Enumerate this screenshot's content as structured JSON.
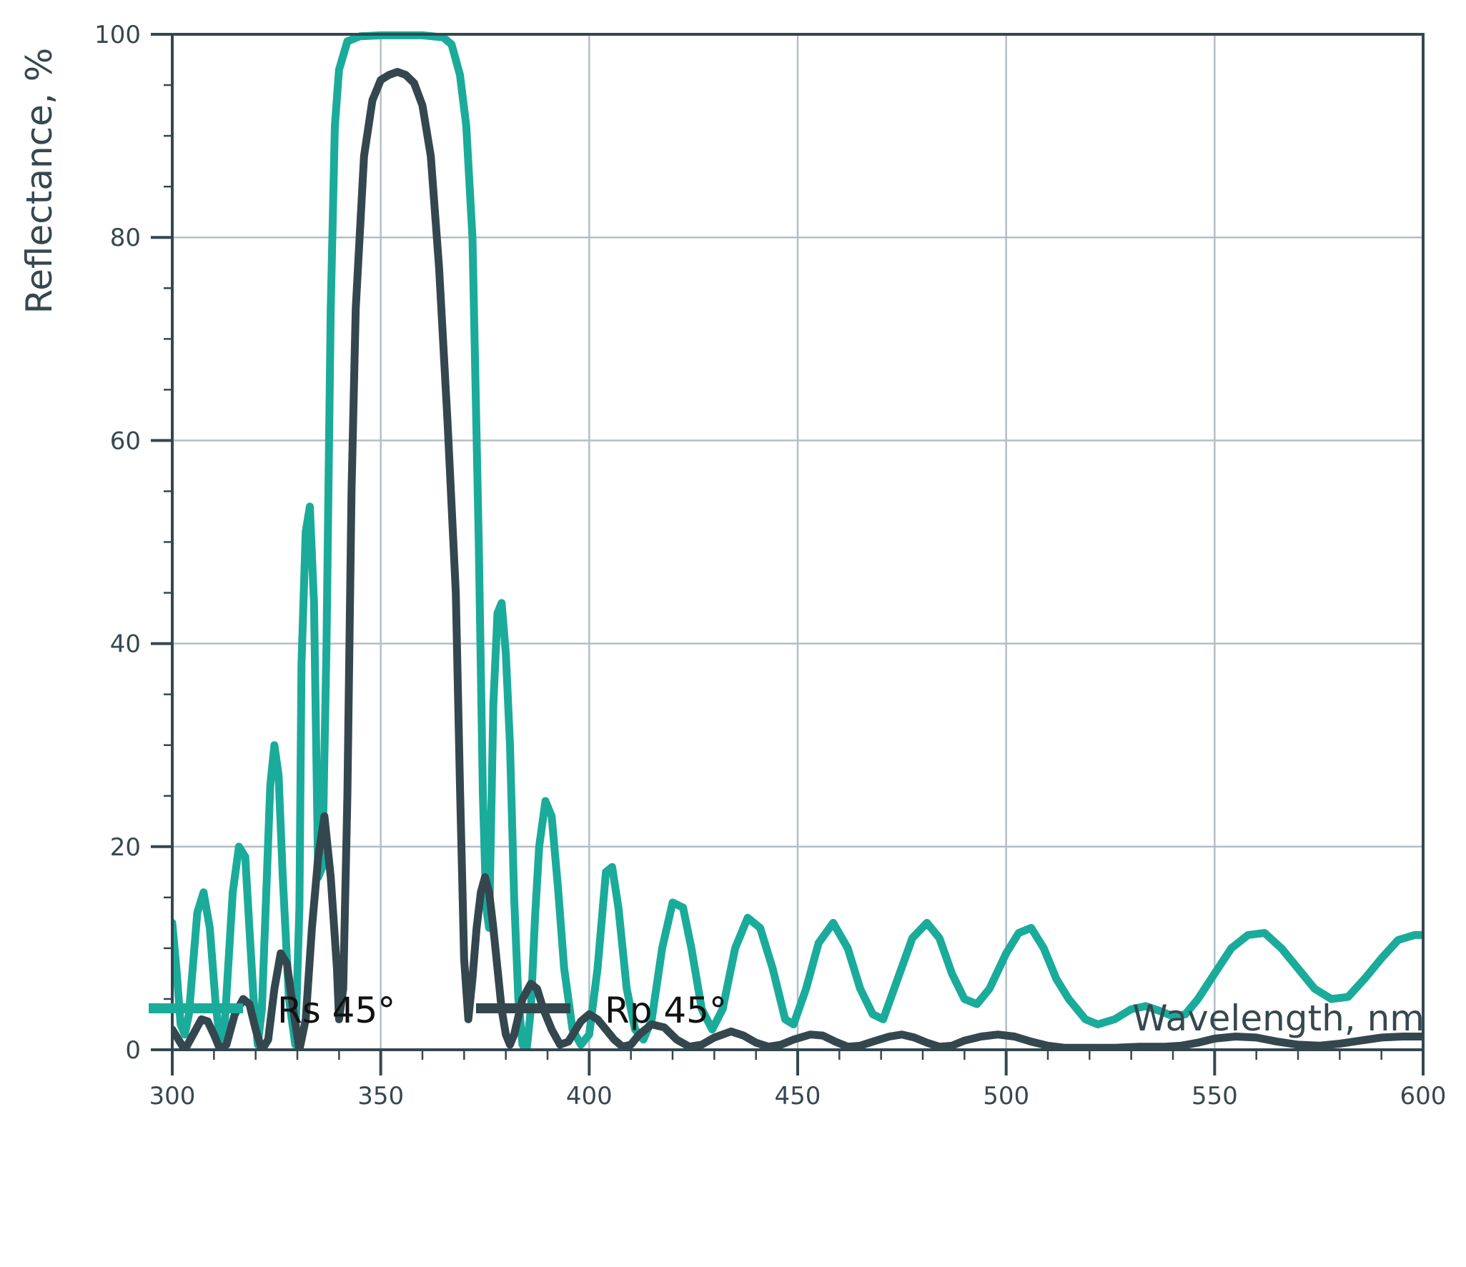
{
  "chart_data": {
    "type": "line",
    "title": "",
    "xlabel": "Wavelength, nm",
    "ylabel": "Reflectance, %",
    "xlim": [
      300,
      600
    ],
    "ylim": [
      0,
      100
    ],
    "x_ticks": [
      "300",
      "350",
      "400",
      "450",
      "500",
      "550",
      "600"
    ],
    "y_ticks": [
      "0",
      "20",
      "40",
      "60",
      "80",
      "100"
    ],
    "grid": true,
    "legend_position": "bottom-left",
    "series": [
      {
        "name": "Rs 45°",
        "color": "#1aab9b",
        "points": [
          [
            300,
            12.5
          ],
          [
            301,
            8
          ],
          [
            302,
            2.5
          ],
          [
            303,
            1.5
          ],
          [
            304,
            3.5
          ],
          [
            306,
            13.5
          ],
          [
            307.5,
            15.5
          ],
          [
            309,
            12
          ],
          [
            310.5,
            4
          ],
          [
            311.5,
            1
          ],
          [
            312.5,
            2
          ],
          [
            314.5,
            15.5
          ],
          [
            316,
            20
          ],
          [
            317.5,
            19
          ],
          [
            318.5,
            12
          ],
          [
            319.5,
            5
          ],
          [
            320.5,
            0.5
          ],
          [
            321.5,
            4
          ],
          [
            323.5,
            26
          ],
          [
            324.5,
            30
          ],
          [
            325.5,
            27
          ],
          [
            326.5,
            17
          ],
          [
            328,
            5
          ],
          [
            329.5,
            0.5
          ],
          [
            330.5,
            14
          ],
          [
            331,
            38
          ],
          [
            332,
            51
          ],
          [
            333,
            53.5
          ],
          [
            334,
            44
          ],
          [
            335,
            17
          ],
          [
            336,
            18
          ],
          [
            337,
            40
          ],
          [
            338,
            73
          ],
          [
            339,
            91
          ],
          [
            340,
            96.5
          ],
          [
            342,
            99.3
          ],
          [
            345,
            99.8
          ],
          [
            350,
            99.9
          ],
          [
            360,
            99.9
          ],
          [
            365,
            99.7
          ],
          [
            367,
            99
          ],
          [
            369,
            96
          ],
          [
            370.5,
            91
          ],
          [
            372,
            80
          ],
          [
            373.5,
            50
          ],
          [
            374.5,
            25
          ],
          [
            375.3,
            14
          ],
          [
            376,
            12
          ],
          [
            377,
            34
          ],
          [
            378,
            43
          ],
          [
            379,
            44
          ],
          [
            380,
            39
          ],
          [
            381,
            30
          ],
          [
            382,
            15
          ],
          [
            383,
            5
          ],
          [
            384,
            0.5
          ],
          [
            385,
            0
          ],
          [
            386,
            4
          ],
          [
            387,
            13
          ],
          [
            388,
            20
          ],
          [
            389.5,
            24.5
          ],
          [
            391,
            23
          ],
          [
            392.5,
            16
          ],
          [
            394,
            8
          ],
          [
            396,
            2
          ],
          [
            398,
            0.5
          ],
          [
            400,
            1.5
          ],
          [
            402,
            8
          ],
          [
            404,
            17.5
          ],
          [
            405.5,
            18
          ],
          [
            407,
            14
          ],
          [
            409,
            6
          ],
          [
            411,
            2
          ],
          [
            413,
            1
          ],
          [
            415,
            3
          ],
          [
            417.5,
            10
          ],
          [
            420,
            14.5
          ],
          [
            422.5,
            14
          ],
          [
            424.5,
            10
          ],
          [
            427,
            4
          ],
          [
            429.5,
            2
          ],
          [
            432,
            4
          ],
          [
            435,
            10
          ],
          [
            438,
            13
          ],
          [
            441,
            12
          ],
          [
            444,
            8
          ],
          [
            447,
            3
          ],
          [
            449,
            2.5
          ],
          [
            452,
            6
          ],
          [
            455,
            10.5
          ],
          [
            458.5,
            12.5
          ],
          [
            462,
            10
          ],
          [
            465,
            6
          ],
          [
            468,
            3.5
          ],
          [
            470.5,
            3
          ],
          [
            474,
            7
          ],
          [
            477.5,
            11
          ],
          [
            481,
            12.5
          ],
          [
            484,
            11
          ],
          [
            487,
            7.5
          ],
          [
            490,
            5
          ],
          [
            493,
            4.5
          ],
          [
            496,
            6
          ],
          [
            500,
            9.5
          ],
          [
            503,
            11.5
          ],
          [
            506,
            12
          ],
          [
            509,
            10
          ],
          [
            512,
            7
          ],
          [
            515,
            5
          ],
          [
            519,
            3
          ],
          [
            522,
            2.5
          ],
          [
            526,
            3
          ],
          [
            530,
            4
          ],
          [
            533.5,
            4.3
          ],
          [
            537,
            3.8
          ],
          [
            540,
            3.3
          ],
          [
            543,
            3.5
          ],
          [
            546,
            5
          ],
          [
            550,
            7.5
          ],
          [
            554,
            10
          ],
          [
            558,
            11.3
          ],
          [
            562,
            11.5
          ],
          [
            566,
            10
          ],
          [
            570,
            8
          ],
          [
            574,
            6
          ],
          [
            578,
            5
          ],
          [
            582,
            5.2
          ],
          [
            586,
            7
          ],
          [
            590,
            9
          ],
          [
            594,
            10.8
          ],
          [
            598,
            11.3
          ],
          [
            600,
            11.3
          ]
        ]
      },
      {
        "name": "Rp 45°",
        "color": "#34474f",
        "points": [
          [
            300,
            2
          ],
          [
            301.5,
            1
          ],
          [
            303,
            0
          ],
          [
            305,
            1.5
          ],
          [
            307,
            3
          ],
          [
            308.5,
            2.8
          ],
          [
            310,
            1.5
          ],
          [
            311.5,
            0
          ],
          [
            313,
            0.5
          ],
          [
            315,
            3.5
          ],
          [
            317,
            5
          ],
          [
            318.5,
            4.5
          ],
          [
            320,
            2
          ],
          [
            321.5,
            0
          ],
          [
            323,
            1
          ],
          [
            324.5,
            6
          ],
          [
            326,
            9.5
          ],
          [
            327.5,
            8.5
          ],
          [
            329,
            4
          ],
          [
            330.5,
            0
          ],
          [
            332,
            3
          ],
          [
            333.5,
            12
          ],
          [
            335,
            19
          ],
          [
            336.5,
            23
          ],
          [
            338,
            17
          ],
          [
            339.5,
            8
          ],
          [
            340,
            3
          ],
          [
            341,
            6
          ],
          [
            342,
            25
          ],
          [
            343,
            55
          ],
          [
            344,
            73
          ],
          [
            346,
            88
          ],
          [
            348,
            93.5
          ],
          [
            350,
            95.5
          ],
          [
            352,
            96
          ],
          [
            354,
            96.3
          ],
          [
            356,
            96
          ],
          [
            358,
            95.2
          ],
          [
            360,
            93
          ],
          [
            362,
            88
          ],
          [
            364,
            77
          ],
          [
            366,
            62
          ],
          [
            368,
            45
          ],
          [
            369,
            26
          ],
          [
            370,
            9
          ],
          [
            371,
            3
          ],
          [
            372,
            7
          ],
          [
            373,
            12
          ],
          [
            374,
            15.5
          ],
          [
            375,
            17
          ],
          [
            376,
            15.5
          ],
          [
            377,
            12
          ],
          [
            378,
            8
          ],
          [
            379,
            4
          ],
          [
            380,
            1.5
          ],
          [
            381,
            0.5
          ],
          [
            382,
            1.5
          ],
          [
            384,
            5
          ],
          [
            386,
            6.5
          ],
          [
            387.5,
            6
          ],
          [
            389,
            4
          ],
          [
            391,
            2
          ],
          [
            393,
            0.5
          ],
          [
            395,
            0.8
          ],
          [
            398,
            2.8
          ],
          [
            400,
            3.5
          ],
          [
            402,
            3
          ],
          [
            404,
            2
          ],
          [
            406,
            1
          ],
          [
            408,
            0.3
          ],
          [
            410,
            0.5
          ],
          [
            412,
            1.5
          ],
          [
            415,
            2.5
          ],
          [
            418,
            2.2
          ],
          [
            421,
            1
          ],
          [
            424,
            0.3
          ],
          [
            427,
            0.5
          ],
          [
            430,
            1.2
          ],
          [
            434,
            1.8
          ],
          [
            437,
            1.4
          ],
          [
            440,
            0.7
          ],
          [
            443,
            0.3
          ],
          [
            446,
            0.5
          ],
          [
            449,
            1
          ],
          [
            453,
            1.5
          ],
          [
            456,
            1.4
          ],
          [
            459,
            0.8
          ],
          [
            462,
            0.3
          ],
          [
            465,
            0.4
          ],
          [
            468,
            0.8
          ],
          [
            472,
            1.3
          ],
          [
            475,
            1.5
          ],
          [
            478,
            1.2
          ],
          [
            481,
            0.7
          ],
          [
            484,
            0.3
          ],
          [
            487,
            0.4
          ],
          [
            490,
            0.9
          ],
          [
            494,
            1.3
          ],
          [
            498,
            1.5
          ],
          [
            502,
            1.3
          ],
          [
            506,
            0.8
          ],
          [
            510,
            0.4
          ],
          [
            514,
            0.2
          ],
          [
            520,
            0.2
          ],
          [
            526,
            0.2
          ],
          [
            532,
            0.3
          ],
          [
            538,
            0.3
          ],
          [
            542,
            0.4
          ],
          [
            546,
            0.7
          ],
          [
            550,
            1.1
          ],
          [
            555,
            1.3
          ],
          [
            560,
            1.2
          ],
          [
            565,
            0.8
          ],
          [
            570,
            0.5
          ],
          [
            575,
            0.4
          ],
          [
            580,
            0.6
          ],
          [
            585,
            0.9
          ],
          [
            590,
            1.2
          ],
          [
            595,
            1.3
          ],
          [
            600,
            1.3
          ]
        ]
      }
    ]
  }
}
